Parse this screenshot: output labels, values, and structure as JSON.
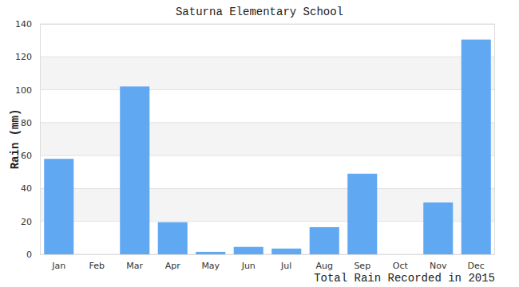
{
  "chart_data": {
    "type": "bar",
    "title": "Saturna Elementary School",
    "y_label": "Rain (mm)",
    "x_label": "Total Rain Recorded in 2015",
    "categories": [
      "Jan",
      "Feb",
      "Mar",
      "Apr",
      "May",
      "Jun",
      "Jul",
      "Aug",
      "Sep",
      "Oct",
      "Nov",
      "Dec"
    ],
    "values": [
      58,
      0,
      102,
      19.5,
      1.5,
      4.5,
      3.5,
      16.5,
      49,
      0,
      31.5,
      130.5
    ],
    "color": "#60a8f2",
    "ylim": [
      0,
      140
    ],
    "yticks": [
      0,
      20,
      40,
      60,
      80,
      100,
      120,
      140
    ],
    "grid": true
  }
}
